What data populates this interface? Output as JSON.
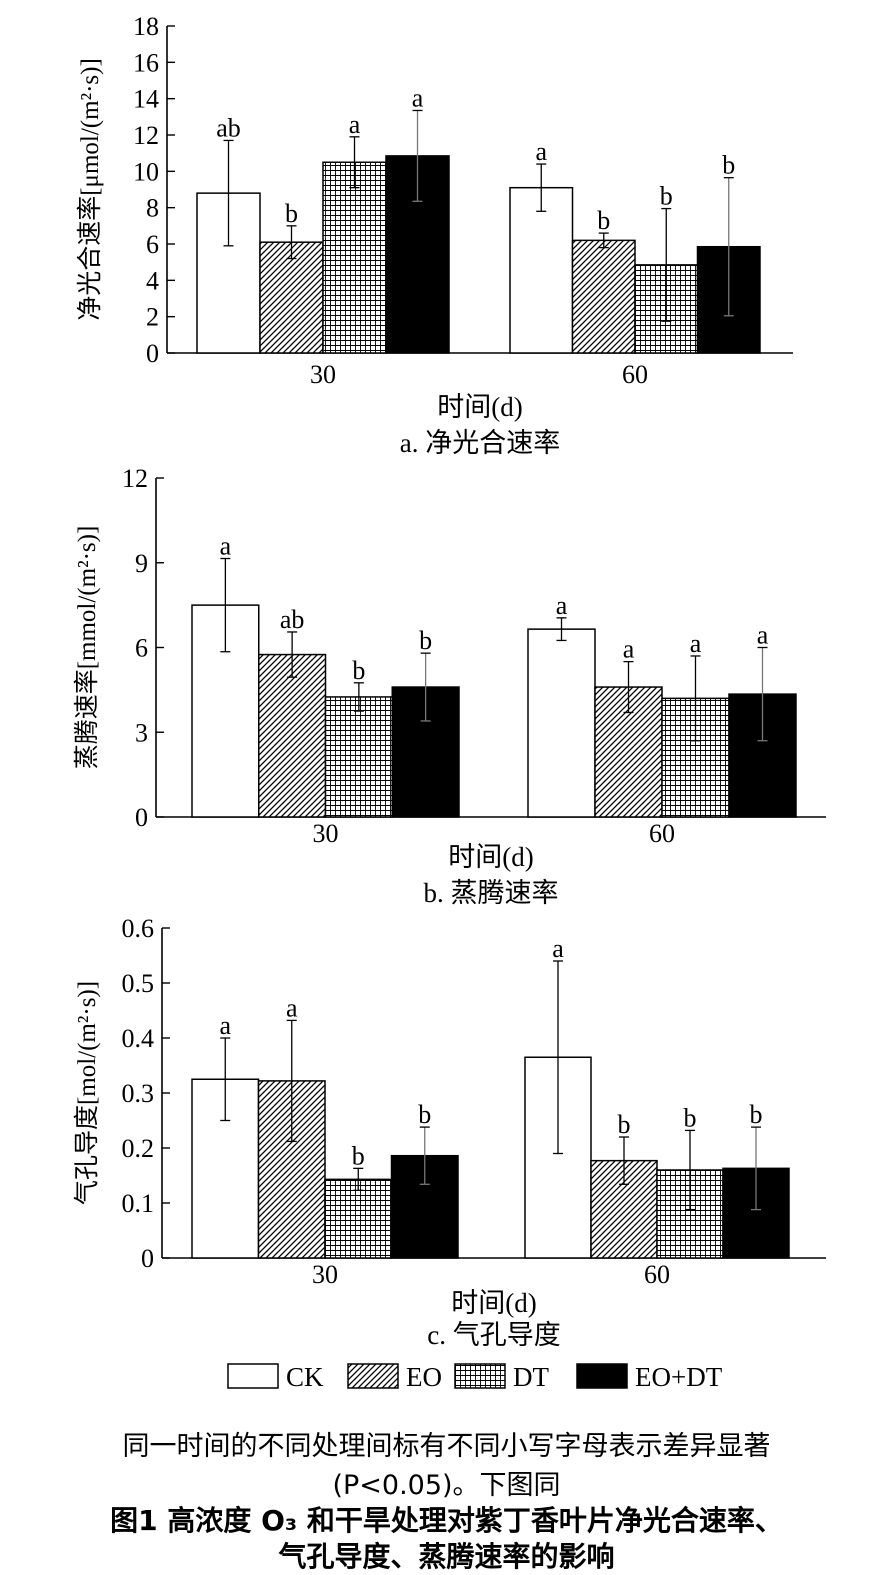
{
  "chart_data": [
    {
      "type": "bar",
      "panel_caption": "a. 净光合速率",
      "xlabel": "时间(d)",
      "ylabel": "净光合速率[μmol/(m²·s)]",
      "categories": [
        "30",
        "60"
      ],
      "ylim": [
        0,
        18
      ],
      "yticks": [
        "0",
        "2",
        "4",
        "6",
        "8",
        "10",
        "12",
        "14",
        "16",
        "18"
      ],
      "series": [
        {
          "name": "CK",
          "values": [
            8.8,
            9.1
          ],
          "errors": [
            2.9,
            1.3
          ],
          "letters": [
            "ab",
            "a"
          ]
        },
        {
          "name": "EO",
          "values": [
            6.1,
            6.2
          ],
          "errors": [
            0.9,
            0.4
          ],
          "letters": [
            "b",
            "b"
          ]
        },
        {
          "name": "DT",
          "values": [
            10.5,
            4.85
          ],
          "errors": [
            1.4,
            3.1
          ],
          "letters": [
            "a",
            "b"
          ]
        },
        {
          "name": "EO+DT",
          "values": [
            10.85,
            5.85
          ],
          "errors": [
            2.5,
            3.8
          ],
          "letters": [
            "a",
            "b"
          ]
        }
      ]
    },
    {
      "type": "bar",
      "panel_caption": "b. 蒸腾速率",
      "xlabel": "时间(d)",
      "ylabel": "蒸腾速率[mmol/(m²·s)]",
      "categories": [
        "30",
        "60"
      ],
      "ylim": [
        0,
        12
      ],
      "yticks": [
        "0",
        "3",
        "6",
        "9",
        "12"
      ],
      "series": [
        {
          "name": "CK",
          "values": [
            7.5,
            6.65
          ],
          "errors": [
            1.65,
            0.4
          ],
          "letters": [
            "a",
            "a"
          ]
        },
        {
          "name": "EO",
          "values": [
            5.75,
            4.6
          ],
          "errors": [
            0.8,
            0.9
          ],
          "letters": [
            "ab",
            "a"
          ]
        },
        {
          "name": "DT",
          "values": [
            4.25,
            4.2
          ],
          "errors": [
            0.5,
            1.5
          ],
          "letters": [
            "b",
            "a"
          ]
        },
        {
          "name": "EO+DT",
          "values": [
            4.6,
            4.35
          ],
          "errors": [
            1.2,
            1.65
          ],
          "letters": [
            "b",
            "a"
          ]
        }
      ]
    },
    {
      "type": "bar",
      "panel_caption": "c. 气孔导度",
      "xlabel": "时间(d)",
      "ylabel": "气孔导度[mol/(m²·s)]",
      "categories": [
        "30",
        "60"
      ],
      "ylim": [
        0,
        0.6
      ],
      "yticks": [
        "0",
        "0.1",
        "0.2",
        "0.3",
        "0.4",
        "0.5",
        "0.6"
      ],
      "series": [
        {
          "name": "CK",
          "values": [
            0.325,
            0.365
          ],
          "errors": [
            0.075,
            0.175
          ],
          "letters": [
            "a",
            "a"
          ]
        },
        {
          "name": "EO",
          "values": [
            0.322,
            0.177
          ],
          "errors": [
            0.11,
            0.043
          ],
          "letters": [
            "a",
            "b"
          ]
        },
        {
          "name": "DT",
          "values": [
            0.143,
            0.16
          ],
          "errors": [
            0.02,
            0.072
          ],
          "letters": [
            "b",
            "b"
          ]
        },
        {
          "name": "EO+DT",
          "values": [
            0.186,
            0.163
          ],
          "errors": [
            0.052,
            0.075
          ],
          "letters": [
            "b",
            "b"
          ]
        }
      ]
    }
  ],
  "legend": [
    "CK",
    "EO",
    "DT",
    "EO+DT"
  ],
  "note_line1": "同一时间的不同处理间标有不同小写字母表示差异显著",
  "note_line2": "(P<0.05)。下图同",
  "caption_line1": "图1    高浓度 O₃ 和干旱处理对紫丁香叶片净光合速率、",
  "caption_line2": "气孔导度、蒸腾速率的影响",
  "colors": {
    "CK": "#ffffff",
    "EO": "hatch",
    "DT": "grid",
    "EO+DT": "#000000"
  }
}
